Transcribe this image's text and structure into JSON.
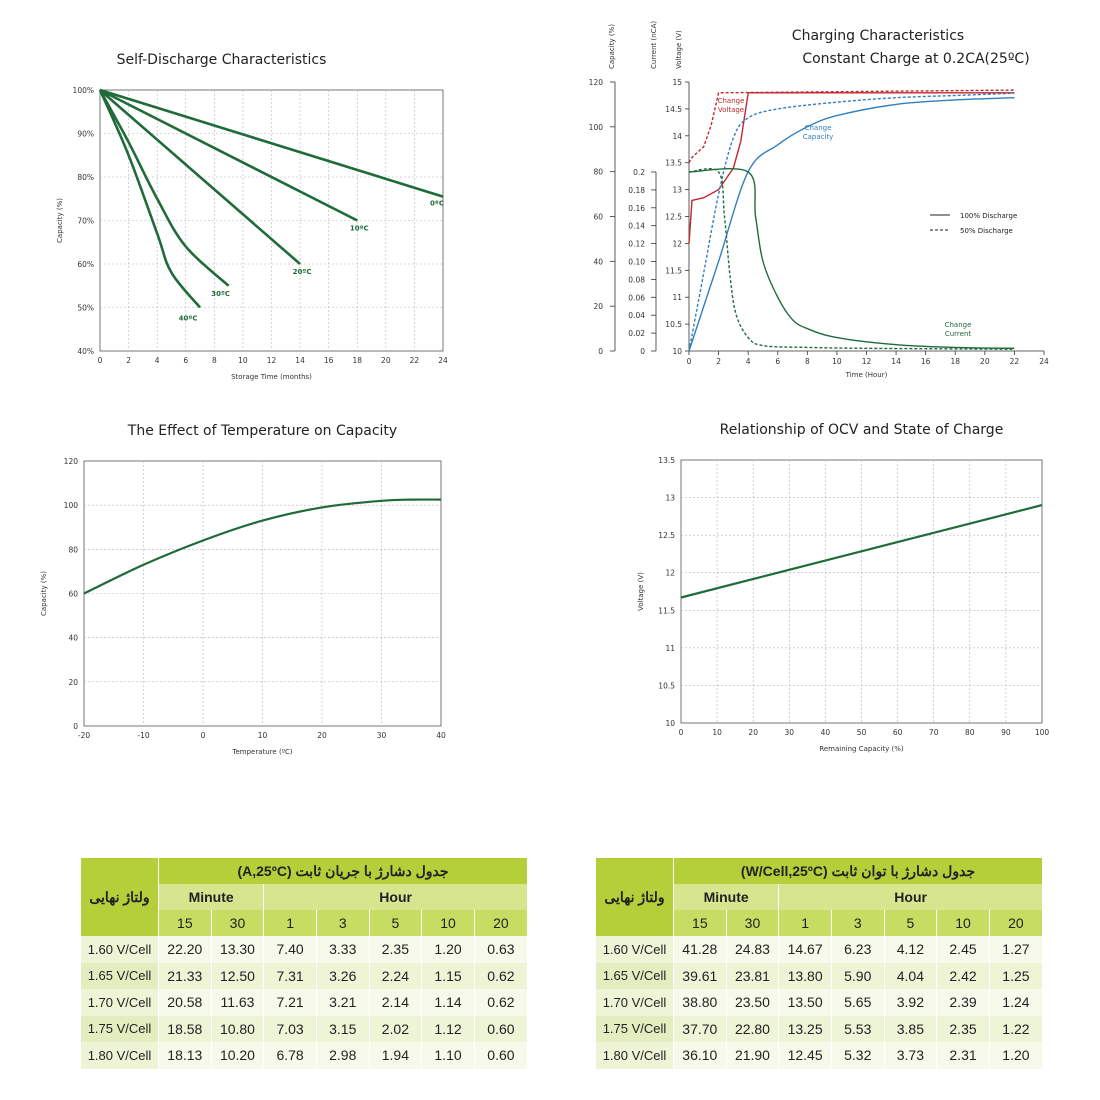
{
  "chart_data": [
    {
      "id": "self_discharge",
      "type": "line",
      "title": "Self-Discharge Characteristics",
      "xlabel": "Storage Time (months)",
      "ylabel": "Capacity (%)",
      "xlim": [
        0,
        24
      ],
      "ylim": [
        40,
        100
      ],
      "xticks": [
        0,
        2,
        4,
        6,
        8,
        10,
        12,
        14,
        16,
        18,
        20,
        22,
        24
      ],
      "yticks": [
        40,
        50,
        60,
        70,
        80,
        90,
        100
      ],
      "ytick_labels": [
        "40%",
        "50%",
        "60%",
        "70%",
        "80%",
        "90%",
        "100%"
      ],
      "grid": true,
      "series": [
        {
          "name": "0ºC",
          "x": [
            0,
            24
          ],
          "y": [
            100,
            75.5
          ]
        },
        {
          "name": "10ºC",
          "x": [
            0,
            18
          ],
          "y": [
            100,
            70
          ]
        },
        {
          "name": "20ºC",
          "x": [
            0,
            14
          ],
          "y": [
            100,
            60
          ]
        },
        {
          "name": "30ºC",
          "x": [
            0,
            2,
            4,
            6,
            9
          ],
          "y": [
            100,
            88,
            75,
            64,
            55
          ]
        },
        {
          "name": "40ºC",
          "x": [
            0,
            2,
            4,
            5,
            7
          ],
          "y": [
            100,
            85,
            67,
            58,
            50
          ]
        }
      ]
    },
    {
      "id": "charging",
      "type": "line",
      "title": "Charging Characteristics",
      "subtitle": "Constant Charge at 0.2CA(25ºC)",
      "xlabel": "Time (Hour)",
      "axis_labels": [
        "Capacity (%)",
        "Current (nCA)",
        "Voltage (V)"
      ],
      "xlim": [
        0,
        24
      ],
      "xticks": [
        0,
        2,
        4,
        6,
        8,
        10,
        12,
        14,
        16,
        18,
        20,
        22,
        24
      ],
      "capacity_ticks": [
        0,
        20,
        40,
        60,
        80,
        100,
        120
      ],
      "current_ticks": [
        "0",
        "0.02",
        "0.04",
        "0.06",
        "0.08",
        "0.10",
        "0.12",
        "0.14",
        "0.16",
        "0.18",
        "0.2"
      ],
      "voltage_ticks": [
        "10",
        "10.5",
        "11",
        "11.5",
        "12",
        "12.5",
        "13",
        "13.5",
        "14",
        "14.5",
        "15"
      ],
      "legend": [
        "100% Discharge",
        "50% Discharge"
      ],
      "annotations": {
        "voltage": [
          "Change",
          "Voltage"
        ],
        "capacity": [
          "Change",
          "Capacity"
        ],
        "current": [
          "Change",
          "Current"
        ]
      },
      "series": [
        {
          "name": "Voltage 100%",
          "axis": "voltage",
          "style": "solid",
          "x": [
            0,
            0.2,
            1,
            2,
            3,
            3.5,
            4,
            22
          ],
          "y": [
            12.0,
            12.8,
            12.85,
            13.0,
            13.4,
            13.9,
            14.8,
            14.8
          ]
        },
        {
          "name": "Voltage 50%",
          "axis": "voltage",
          "style": "dashed",
          "x": [
            0,
            0.2,
            1,
            1.5,
            2,
            22
          ],
          "y": [
            13.5,
            13.6,
            13.8,
            14.2,
            14.8,
            14.85
          ]
        },
        {
          "name": "Capacity 100%",
          "axis": "capacity",
          "style": "solid",
          "x": [
            0,
            2,
            4,
            6,
            8,
            10,
            14,
            18,
            22
          ],
          "y": [
            0,
            40,
            80,
            92,
            100,
            105,
            110,
            112,
            113
          ]
        },
        {
          "name": "Capacity 50%",
          "axis": "capacity",
          "style": "dashed",
          "x": [
            0,
            1,
            2,
            3,
            4,
            6,
            10,
            14,
            18,
            22
          ],
          "y": [
            0,
            35,
            70,
            95,
            104,
            108,
            111,
            113,
            114,
            115
          ]
        },
        {
          "name": "Current 100%",
          "axis": "current",
          "style": "solid",
          "x": [
            0,
            4,
            4.5,
            5,
            6,
            7,
            8,
            10,
            14,
            18,
            22
          ],
          "y": [
            0.2,
            0.2,
            0.15,
            0.1,
            0.06,
            0.035,
            0.025,
            0.015,
            0.007,
            0.004,
            0.003
          ]
        },
        {
          "name": "Current 50%",
          "axis": "current",
          "style": "dashed",
          "x": [
            0,
            2,
            2.4,
            2.8,
            3.2,
            4,
            5,
            8,
            12,
            22
          ],
          "y": [
            0.2,
            0.2,
            0.15,
            0.08,
            0.04,
            0.015,
            0.006,
            0.004,
            0.003,
            0.002
          ]
        }
      ]
    },
    {
      "id": "temperature",
      "type": "line",
      "title": "The Effect of Temperature on Capacity",
      "xlabel": "Temperature (ºC)",
      "ylabel": "Capacity (%)",
      "xlim": [
        -20,
        40
      ],
      "ylim": [
        0,
        120
      ],
      "xticks": [
        -20,
        -10,
        0,
        10,
        20,
        30,
        40
      ],
      "yticks": [
        0,
        20,
        40,
        60,
        80,
        100,
        120
      ],
      "grid": true,
      "series": [
        {
          "x": [
            -20,
            -10,
            0,
            10,
            20,
            30,
            35,
            40
          ],
          "y": [
            60,
            73,
            84,
            93,
            99,
            102,
            102.5,
            102.5
          ]
        }
      ]
    },
    {
      "id": "ocv",
      "type": "line",
      "title": "Relationship of OCV and State of Charge",
      "xlabel": "Remaining Capacity (%)",
      "ylabel": "Voltage (V)",
      "xlim": [
        0,
        100
      ],
      "ylim": [
        10,
        13.5
      ],
      "xticks": [
        0,
        10,
        20,
        30,
        40,
        50,
        60,
        70,
        80,
        90,
        100
      ],
      "yticks": [
        10,
        10.5,
        11,
        11.5,
        12,
        12.5,
        13,
        13.5
      ],
      "grid": true,
      "series": [
        {
          "x": [
            0,
            100
          ],
          "y": [
            11.67,
            12.9
          ]
        }
      ]
    }
  ],
  "tables": [
    {
      "title": "جدول دشارژ با جریان ثابت (A,25ºC)",
      "side_label": "ولتاژ نهایی",
      "groups": [
        "Minute",
        "Hour"
      ],
      "columns": [
        "15",
        "30",
        "1",
        "3",
        "5",
        "10",
        "20"
      ],
      "rows": [
        {
          "label": "1.60 V/Cell",
          "values": [
            "22.20",
            "13.30",
            "7.40",
            "3.33",
            "2.35",
            "1.20",
            "0.63"
          ]
        },
        {
          "label": "1.65 V/Cell",
          "values": [
            "21.33",
            "12.50",
            "7.31",
            "3.26",
            "2.24",
            "1.15",
            "0.62"
          ]
        },
        {
          "label": "1.70 V/Cell",
          "values": [
            "20.58",
            "11.63",
            "7.21",
            "3.21",
            "2.14",
            "1.14",
            "0.62"
          ]
        },
        {
          "label": "1.75 V/Cell",
          "values": [
            "18.58",
            "10.80",
            "7.03",
            "3.15",
            "2.02",
            "1.12",
            "0.60"
          ]
        },
        {
          "label": "1.80 V/Cell",
          "values": [
            "18.13",
            "10.20",
            "6.78",
            "2.98",
            "1.94",
            "1.10",
            "0.60"
          ]
        }
      ]
    },
    {
      "title": "جدول دشارژ با توان ثابت (W/Cell,25ºC)",
      "side_label": "ولتاژ نهایی",
      "groups": [
        "Minute",
        "Hour"
      ],
      "columns": [
        "15",
        "30",
        "1",
        "3",
        "5",
        "10",
        "20"
      ],
      "rows": [
        {
          "label": "1.60 V/Cell",
          "values": [
            "41.28",
            "24.83",
            "14.67",
            "6.23",
            "4.12",
            "2.45",
            "1.27"
          ]
        },
        {
          "label": "1.65 V/Cell",
          "values": [
            "39.61",
            "23.81",
            "13.80",
            "5.90",
            "4.04",
            "2.42",
            "1.25"
          ]
        },
        {
          "label": "1.70 V/Cell",
          "values": [
            "38.80",
            "23.50",
            "13.50",
            "5.65",
            "3.92",
            "2.39",
            "1.24"
          ]
        },
        {
          "label": "1.75 V/Cell",
          "values": [
            "37.70",
            "22.80",
            "13.25",
            "5.53",
            "3.85",
            "2.35",
            "1.22"
          ]
        },
        {
          "label": "1.80 V/Cell",
          "values": [
            "36.10",
            "21.90",
            "12.45",
            "5.32",
            "3.73",
            "2.31",
            "1.20"
          ]
        }
      ]
    }
  ],
  "colors": {
    "green": "#1f6b3a",
    "red": "#c0282e",
    "blue": "#2f7fc1",
    "grid": "#b5b5b5",
    "table_header": "#b5cf3b"
  }
}
